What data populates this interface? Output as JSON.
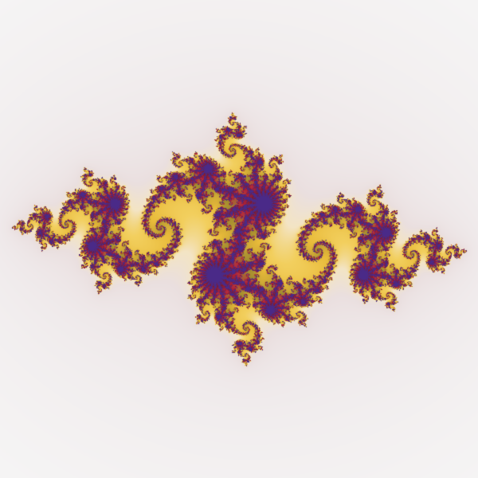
{
  "fractal": {
    "kind": "julia-set",
    "c_re": -0.8,
    "c_im": 0.156,
    "center_re": 0.0,
    "center_im": 0.0,
    "view_half_width": 1.6,
    "max_iter": 220
  },
  "palette": {
    "background": "#f6f6f6",
    "halo_outer": "#efe9ea",
    "halo_inner": "#eadfdf",
    "glow": "#f3e4c4",
    "gold": "#e9bb3a",
    "gold_light": "#f2cf5e",
    "olive": "#a08a2f",
    "crimson": "#b3233c",
    "deep_red": "#7d1b2f",
    "core": "#4a2a88"
  }
}
